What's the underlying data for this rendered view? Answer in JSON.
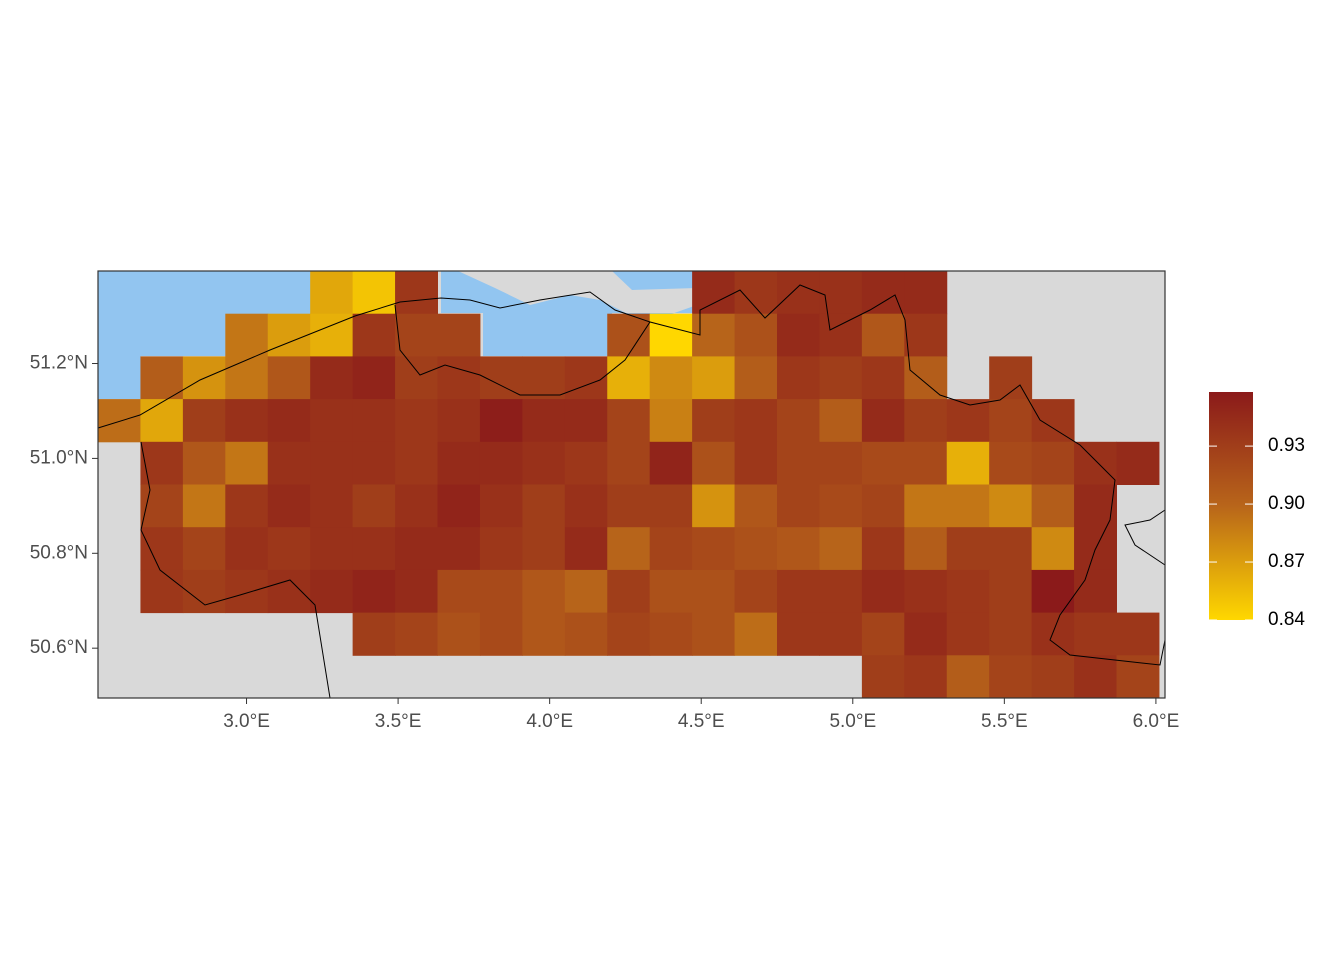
{
  "chart_data": {
    "type": "heatmap",
    "x": [
      2.58,
      2.72,
      2.86,
      3.0,
      3.14,
      3.28,
      3.42,
      3.56,
      3.7,
      3.84,
      3.98,
      4.12,
      4.26,
      4.4,
      4.54,
      4.68,
      4.82,
      4.96,
      5.1,
      5.24,
      5.38,
      5.52,
      5.66,
      5.8,
      5.94
    ],
    "y": [
      51.35,
      51.26,
      51.17,
      51.08,
      50.99,
      50.9,
      50.81,
      50.72,
      50.63,
      50.54
    ],
    "values": [
      [
        null,
        null,
        null,
        null,
        null,
        0.865,
        0.85,
        0.935,
        null,
        null,
        null,
        null,
        null,
        null,
        0.945,
        0.935,
        0.94,
        0.94,
        0.945,
        0.945,
        null,
        null,
        null,
        null,
        null
      ],
      [
        null,
        null,
        null,
        0.89,
        0.87,
        0.86,
        0.935,
        0.925,
        0.925,
        null,
        null,
        null,
        0.915,
        0.84,
        0.9,
        0.915,
        0.945,
        0.94,
        0.91,
        0.935,
        null,
        null,
        null,
        null,
        null
      ],
      [
        null,
        0.905,
        0.875,
        0.89,
        0.91,
        0.945,
        0.95,
        0.93,
        0.935,
        0.93,
        0.93,
        0.935,
        0.86,
        0.88,
        0.87,
        0.905,
        0.935,
        0.93,
        0.935,
        0.905,
        null,
        0.93,
        null,
        null,
        null
      ],
      [
        0.895,
        0.865,
        0.93,
        0.94,
        0.945,
        0.94,
        0.94,
        0.935,
        0.94,
        0.955,
        0.945,
        0.945,
        0.925,
        0.885,
        0.93,
        0.935,
        0.925,
        0.905,
        0.945,
        0.93,
        0.935,
        0.925,
        0.935,
        null,
        null
      ],
      [
        null,
        0.935,
        0.91,
        0.89,
        0.94,
        0.94,
        0.94,
        0.935,
        0.945,
        0.945,
        0.94,
        0.935,
        0.925,
        0.95,
        0.915,
        0.935,
        0.925,
        0.925,
        0.92,
        0.92,
        0.86,
        0.92,
        0.925,
        0.94,
        0.945
      ],
      [
        null,
        0.925,
        0.89,
        0.935,
        0.945,
        0.94,
        0.93,
        0.94,
        0.95,
        0.94,
        0.93,
        0.94,
        0.93,
        0.93,
        0.875,
        0.91,
        0.925,
        0.92,
        0.925,
        0.89,
        0.89,
        0.88,
        0.905,
        0.945,
        null
      ],
      [
        null,
        0.935,
        0.925,
        0.94,
        0.935,
        0.94,
        0.94,
        0.945,
        0.945,
        0.935,
        0.93,
        0.945,
        0.9,
        0.925,
        0.92,
        0.915,
        0.91,
        0.9,
        0.935,
        0.905,
        0.93,
        0.93,
        0.88,
        0.945,
        null
      ],
      [
        null,
        0.935,
        0.93,
        0.935,
        0.94,
        0.945,
        0.95,
        0.945,
        0.92,
        0.92,
        0.91,
        0.9,
        0.93,
        0.915,
        0.915,
        0.925,
        0.935,
        0.935,
        0.945,
        0.94,
        0.935,
        0.93,
        0.958,
        0.945,
        null
      ],
      [
        null,
        null,
        null,
        null,
        null,
        null,
        0.93,
        0.925,
        0.915,
        0.92,
        0.91,
        0.915,
        0.925,
        0.92,
        0.915,
        0.895,
        0.935,
        0.935,
        0.925,
        0.945,
        0.935,
        0.93,
        0.94,
        0.935,
        0.935
      ],
      [
        null,
        null,
        null,
        null,
        null,
        null,
        null,
        null,
        null,
        null,
        null,
        null,
        null,
        null,
        null,
        null,
        null,
        null,
        0.93,
        0.935,
        0.905,
        0.925,
        0.93,
        0.94,
        0.925
      ]
    ],
    "xlim": [
      2.51,
      6.03
    ],
    "ylim": [
      50.495,
      51.395
    ],
    "xticks": [
      {
        "value": 3.0,
        "label": "3.0°E"
      },
      {
        "value": 3.5,
        "label": "3.5°E"
      },
      {
        "value": 4.0,
        "label": "4.0°E"
      },
      {
        "value": 4.5,
        "label": "4.5°E"
      },
      {
        "value": 5.0,
        "label": "5.0°E"
      },
      {
        "value": 5.5,
        "label": "5.5°E"
      },
      {
        "value": 6.0,
        "label": "6.0°E"
      }
    ],
    "yticks": [
      {
        "value": 50.6,
        "label": "50.6°N"
      },
      {
        "value": 50.8,
        "label": "50.8°N"
      },
      {
        "value": 51.0,
        "label": "51.0°N"
      },
      {
        "value": 51.2,
        "label": "51.2°N"
      }
    ],
    "colorbar": {
      "lim": [
        0.84,
        0.958
      ],
      "ticks": [
        0.84,
        0.87,
        {
          "value": 0.9,
          "label": "0.90"
        },
        0.93
      ],
      "colors": [
        "#FFD700",
        "#B8651A",
        "#8B1A1A"
      ]
    }
  }
}
